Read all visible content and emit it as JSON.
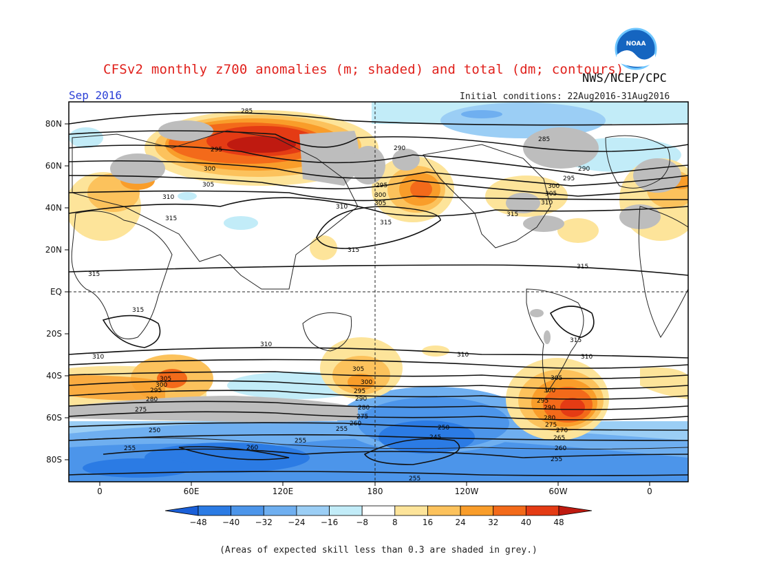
{
  "header": {
    "title": "CFSv2 monthly z700 anomalies (m; shaded) and total (dm; contours)",
    "agency": "NWS/NCEP/CPC",
    "month": "Sep 2016",
    "initial_conditions": "Initial conditions: 22Aug2016-31Aug2016"
  },
  "logo": {
    "icon": "noaa-logo",
    "text": "NOAA"
  },
  "axes": {
    "lat_labels": [
      "80N",
      "60N",
      "40N",
      "20N",
      "EQ",
      "20S",
      "40S",
      "60S",
      "80S"
    ],
    "lon_labels": [
      "0",
      "60E",
      "120E",
      "180",
      "120W",
      "60W",
      "0"
    ]
  },
  "colorbar": {
    "ticks": [
      "-48",
      "-40",
      "-32",
      "-24",
      "-16",
      "-8",
      "8",
      "16",
      "24",
      "32",
      "40",
      "48"
    ],
    "colors": [
      "#1a5fd8",
      "#2b7be4",
      "#4c95ea",
      "#6faff0",
      "#9bcef5",
      "#c2ecf8",
      "#ffffff",
      "#fde49a",
      "#fcc25c",
      "#f99d2a",
      "#f36a1a",
      "#e43b14",
      "#bf1a10"
    ]
  },
  "contour_labels": {
    "c285": "285",
    "c290": "290",
    "c295": "295",
    "c300": "300",
    "c305": "305",
    "c310": "310",
    "c315": "315",
    "s310": "310",
    "s305": "305",
    "s300": "300",
    "s295": "295",
    "s290": "290",
    "s285": "285",
    "s280": "280",
    "s275": "275",
    "s270": "270",
    "s265": "265",
    "s260": "260",
    "s255": "255",
    "s250": "250",
    "s245": "245"
  },
  "footnote": "(Areas of expected skill less than 0.3 are shaded in grey.)"
}
